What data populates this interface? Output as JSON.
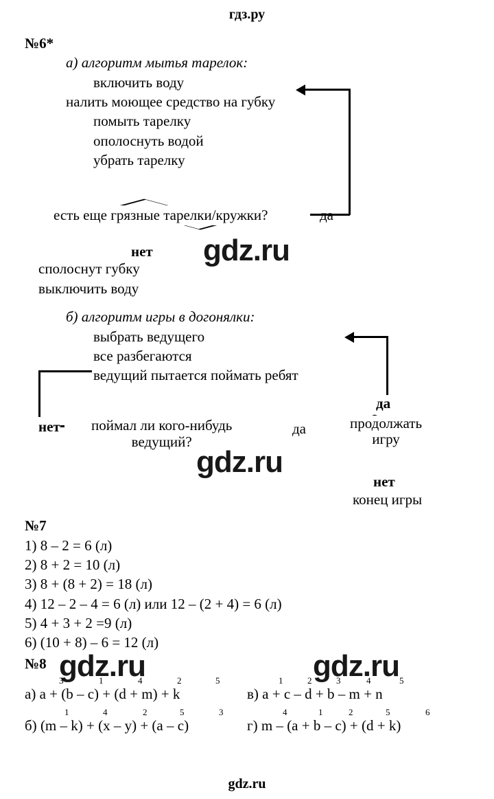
{
  "header": "гдз.ру",
  "footer": "gdz.ru",
  "watermarks": [
    "gdz.ru",
    "gdz.ru",
    "gdz.ru",
    "gdz.ru"
  ],
  "task6": {
    "num": "№6*",
    "a": {
      "title": "а) алгоритм мытья тарелок:",
      "steps": [
        "включить воду",
        "налить моющее средство на губку",
        "помыть тарелку",
        "ополоснуть водой",
        "убрать тарелку"
      ],
      "decision": "есть еще грязные тарелки/кружки?",
      "yes": "да",
      "no": "нет",
      "after": [
        "сполоснут губку",
        "выключить воду"
      ]
    },
    "b": {
      "title": "б) алгоритм игры в догонялки:",
      "steps": [
        "выбрать ведущего",
        "все разбегаются",
        "ведущий пытается поймать ребят"
      ],
      "decision1": "поймал ли кого-нибудь ведущий?",
      "decision2": "продолжать игру",
      "yes": "да",
      "no": "нет",
      "end": "конец игры"
    }
  },
  "task7": {
    "num": "№7",
    "lines": [
      "1) 8 – 2 = 6 (л)",
      "2) 8 + 2 = 10 (л)",
      "3) 8 + (8 + 2) = 18 (л)",
      "4) 12 – 2 – 4 = 6 (л) или 12 – (2 + 4) = 6 (л)",
      "5) 4 + 3 + 2 =9 (л)",
      "6) (10 + 8) – 6 = 12 (л)"
    ]
  },
  "task8": {
    "num": "№8",
    "a": {
      "prefix": "а) ",
      "expr": "a + (b – c) + (d + m) + k",
      "order": [
        {
          "p": 50,
          "n": "3"
        },
        {
          "p": 108,
          "n": "1"
        },
        {
          "p": 165,
          "n": "4"
        },
        {
          "p": 222,
          "n": "2"
        },
        {
          "p": 278,
          "n": "5"
        }
      ]
    },
    "b": {
      "prefix": "б) ",
      "expr": "(m – k) + (x – y) + (a – c)",
      "order": [
        {
          "p": 58,
          "n": "1"
        },
        {
          "p": 114,
          "n": "4"
        },
        {
          "p": 172,
          "n": "2"
        },
        {
          "p": 226,
          "n": "5"
        },
        {
          "p": 283,
          "n": "3"
        }
      ]
    },
    "c": {
      "prefix": "в) ",
      "expr": "a + c – d + b – m + n",
      "order": [
        {
          "p": 46,
          "n": "1"
        },
        {
          "p": 88,
          "n": "2"
        },
        {
          "p": 130,
          "n": "3"
        },
        {
          "p": 174,
          "n": "4"
        },
        {
          "p": 222,
          "n": "5"
        }
      ]
    },
    "d": {
      "prefix": "г) ",
      "expr": "m – (a + b – c) + (d + k)",
      "order": [
        {
          "p": 52,
          "n": "4"
        },
        {
          "p": 104,
          "n": "1"
        },
        {
          "p": 148,
          "n": "2"
        },
        {
          "p": 202,
          "n": "5"
        },
        {
          "p": 260,
          "n": "6"
        }
      ]
    }
  }
}
